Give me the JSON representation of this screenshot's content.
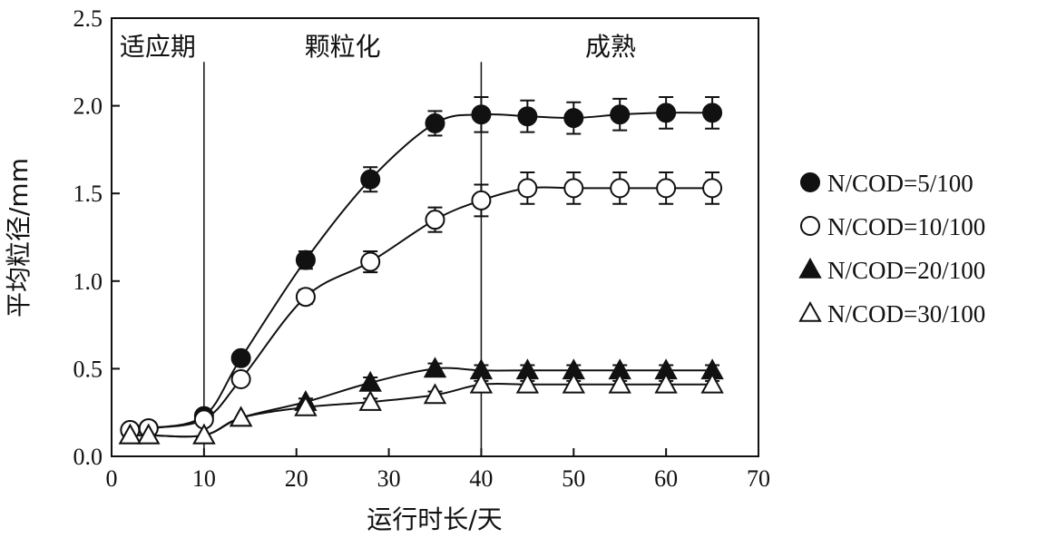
{
  "chart_data": {
    "type": "scatter",
    "xlabel": "运行时长/天",
    "ylabel": "平均粒径/mm",
    "xlim": [
      0,
      70
    ],
    "ylim": [
      0,
      2.5
    ],
    "xticks": [
      0,
      10,
      20,
      30,
      40,
      50,
      60,
      70
    ],
    "yticks": [
      "0.0",
      "0.5",
      "1.0",
      "1.5",
      "2.0",
      "2.5"
    ],
    "grid": false,
    "legend_position": "right",
    "phase_lines": [
      10,
      40
    ],
    "phases": [
      {
        "label": "适应期",
        "x_center": 5
      },
      {
        "label": "颗粒化",
        "x_center": 25
      },
      {
        "label": "成熟",
        "x_center": 54
      }
    ],
    "series": [
      {
        "name": "N/COD=5/100",
        "marker": "filled-circle",
        "x": [
          2,
          4,
          10,
          14,
          21,
          28,
          35,
          40,
          45,
          50,
          55,
          60,
          65
        ],
        "y": [
          0.15,
          0.16,
          0.23,
          0.56,
          1.12,
          1.58,
          1.9,
          1.95,
          1.94,
          1.93,
          1.95,
          1.96,
          1.96
        ],
        "error": [
          0,
          0,
          0,
          0,
          0.05,
          0.07,
          0.07,
          0.1,
          0.09,
          0.09,
          0.09,
          0.09,
          0.09
        ]
      },
      {
        "name": "N/COD=10/100",
        "marker": "open-circle",
        "x": [
          2,
          4,
          10,
          14,
          21,
          28,
          35,
          40,
          45,
          50,
          55,
          60,
          65
        ],
        "y": [
          0.15,
          0.16,
          0.21,
          0.44,
          0.91,
          1.11,
          1.35,
          1.46,
          1.53,
          1.53,
          1.53,
          1.53,
          1.53
        ],
        "error": [
          0,
          0,
          0,
          0,
          0.04,
          0.06,
          0.07,
          0.09,
          0.09,
          0.09,
          0.09,
          0.09,
          0.09
        ]
      },
      {
        "name": "N/COD=20/100",
        "marker": "filled-triangle",
        "x": [
          2,
          4,
          10,
          14,
          21,
          28,
          35,
          40,
          45,
          50,
          55,
          60,
          65
        ],
        "y": [
          0.12,
          0.12,
          0.12,
          0.22,
          0.31,
          0.42,
          0.5,
          0.49,
          0.49,
          0.49,
          0.49,
          0.49,
          0.49
        ],
        "error": [
          0,
          0,
          0,
          0,
          0.02,
          0.03,
          0.03,
          0.03,
          0.03,
          0.03,
          0.03,
          0.03,
          0.03
        ]
      },
      {
        "name": "N/COD=30/100",
        "marker": "open-triangle",
        "x": [
          2,
          4,
          10,
          14,
          21,
          28,
          35,
          40,
          45,
          50,
          55,
          60,
          65
        ],
        "y": [
          0.12,
          0.12,
          0.12,
          0.22,
          0.28,
          0.31,
          0.35,
          0.41,
          0.41,
          0.41,
          0.41,
          0.41,
          0.41
        ],
        "error": [
          0,
          0,
          0,
          0,
          0.02,
          0.02,
          0.02,
          0.02,
          0.02,
          0.02,
          0.02,
          0.02,
          0.02
        ]
      }
    ]
  }
}
